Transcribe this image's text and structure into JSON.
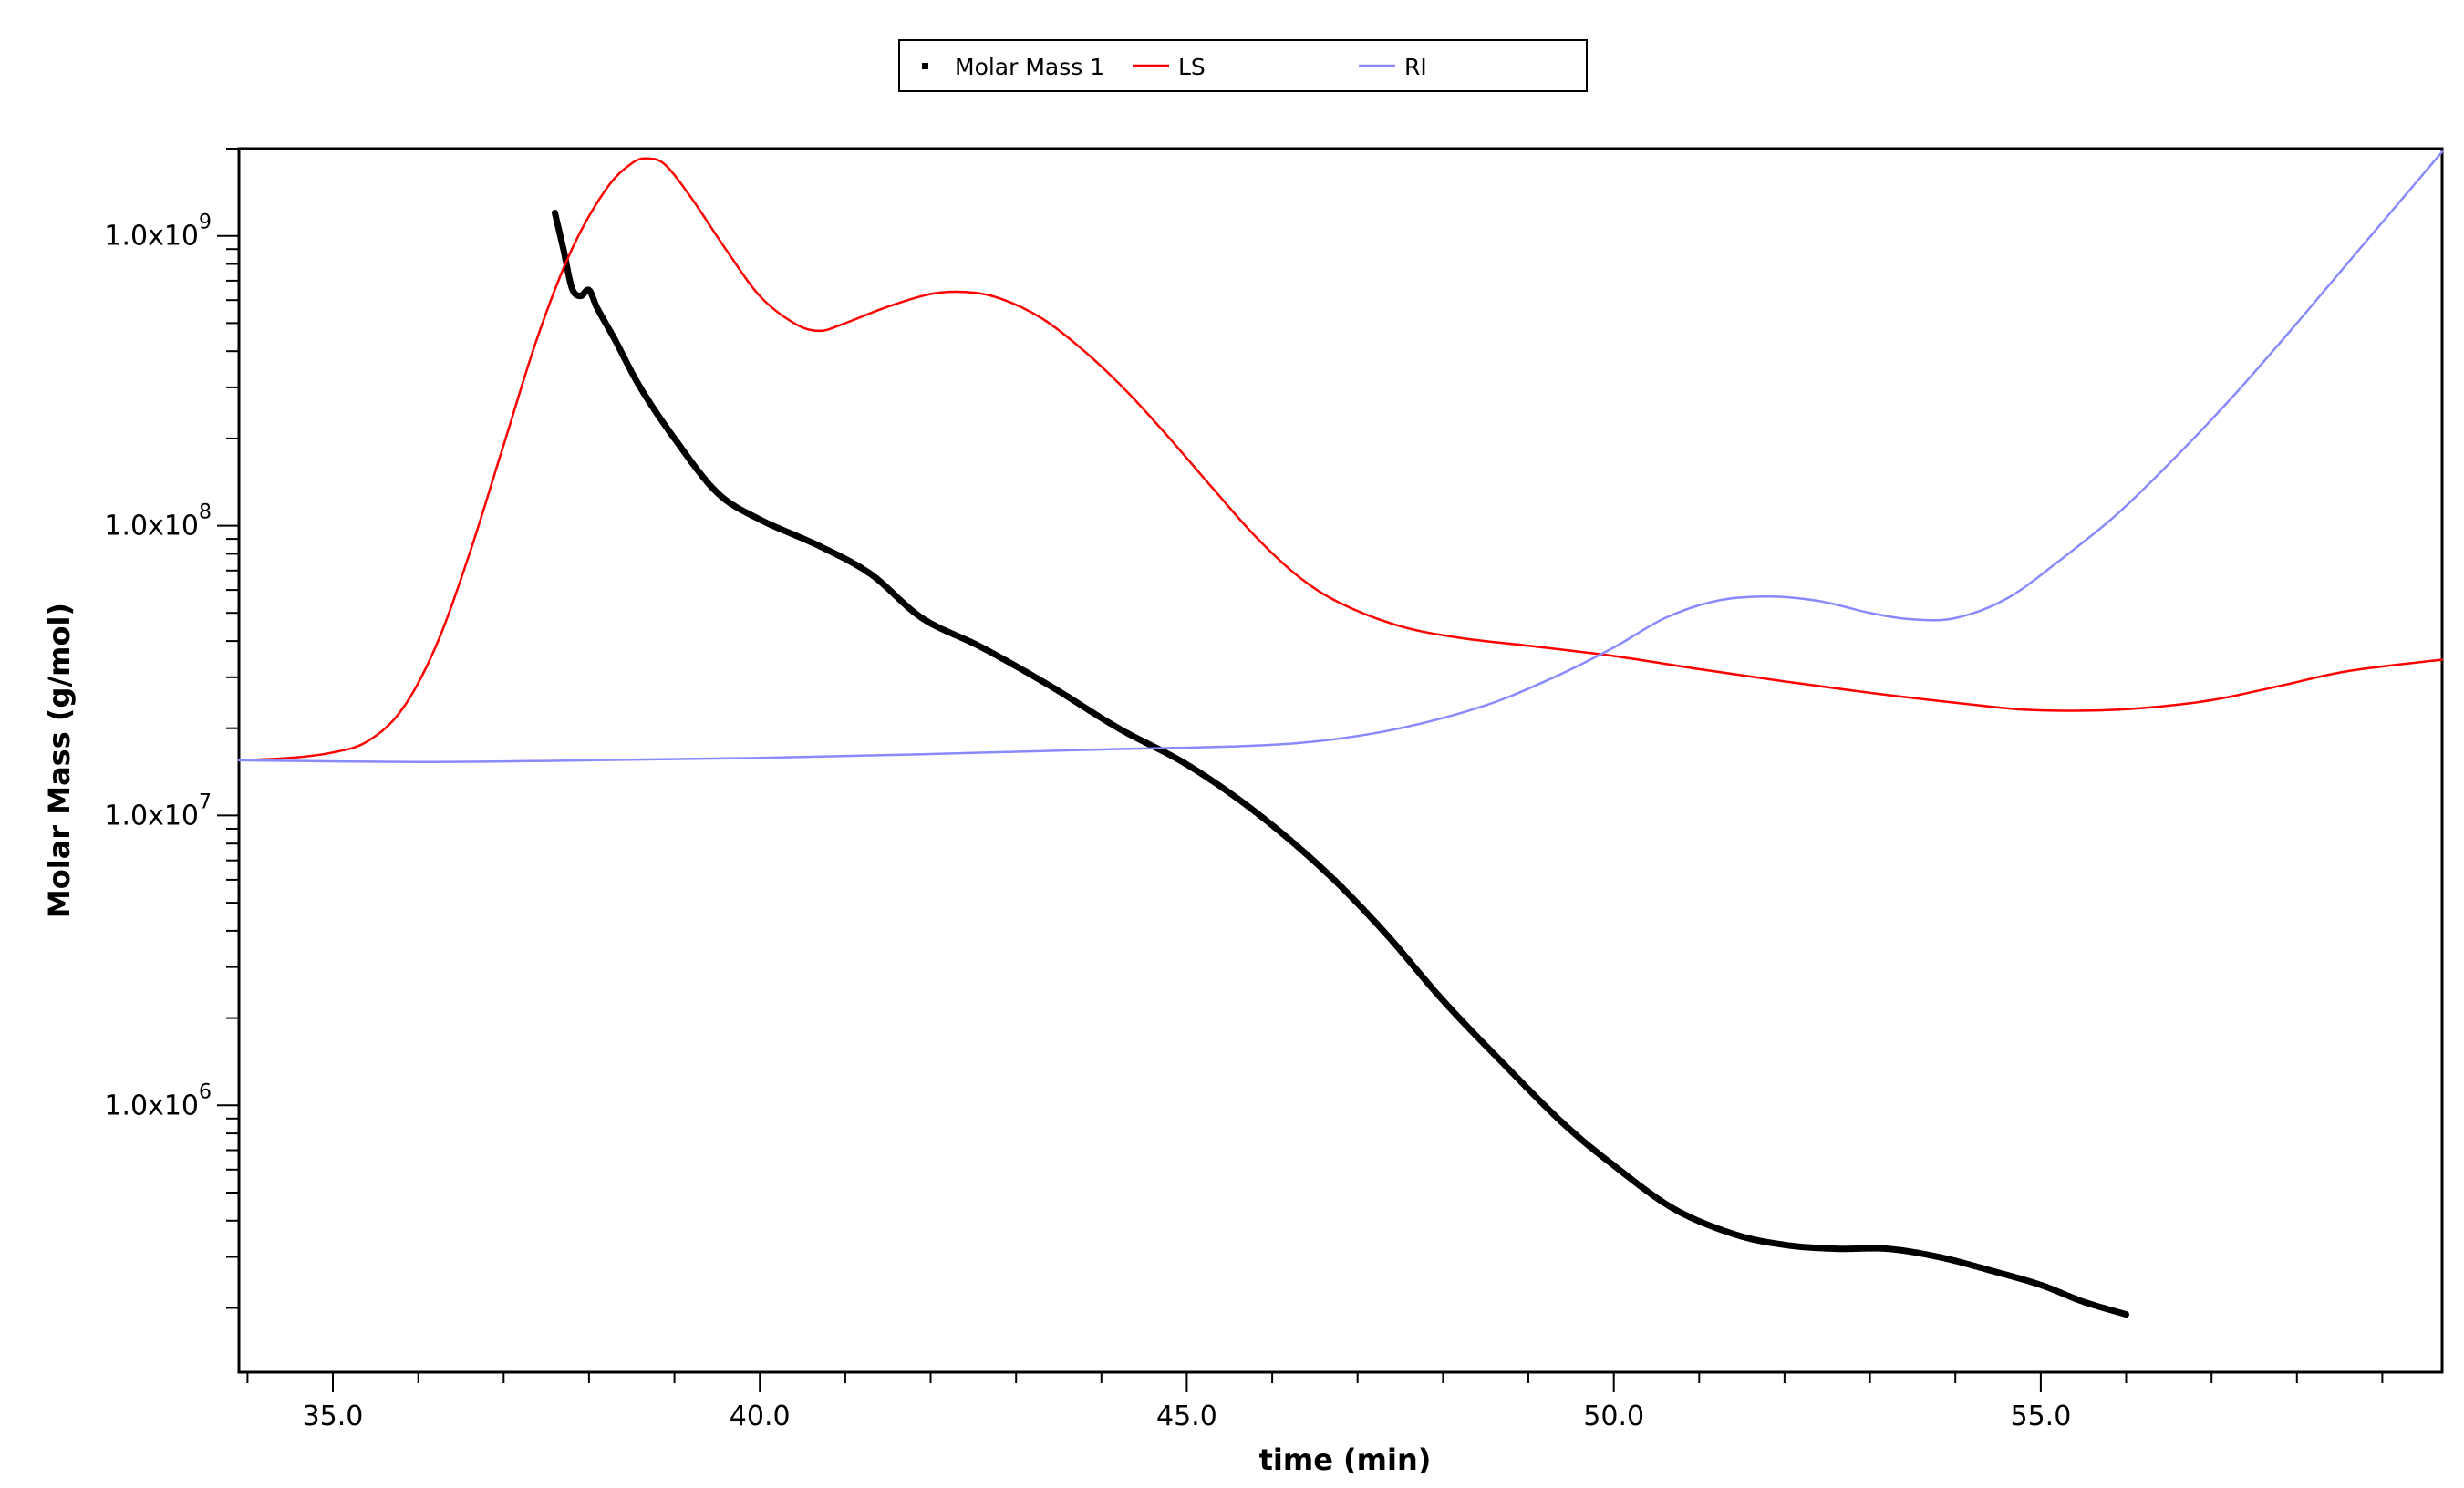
{
  "chart_data": {
    "type": "line",
    "xlabel": "time (min)",
    "ylabel": "Molar Mass (g/mol)",
    "y_scale": "log",
    "xlim": [
      33.9,
      59.7
    ],
    "ylim": [
      120000,
      2000000000
    ],
    "x_ticks": [
      35.0,
      40.0,
      45.0,
      50.0,
      55.0
    ],
    "x_tick_labels": [
      "35.0",
      "40.0",
      "45.0",
      "50.0",
      "55.0"
    ],
    "y_ticks": [
      1000000,
      10000000,
      100000000,
      1000000000
    ],
    "y_tick_labels": [
      {
        "mantissa": "1.0x10",
        "exponent": "6"
      },
      {
        "mantissa": "1.0x10",
        "exponent": "7"
      },
      {
        "mantissa": "1.0x10",
        "exponent": "8"
      },
      {
        "mantissa": "1.0x10",
        "exponent": "9"
      }
    ],
    "grid": false,
    "legend_position": "top-center",
    "legend": [
      "Molar Mass 1",
      "LS",
      "RI"
    ],
    "series": [
      {
        "name": "Molar Mass 1",
        "color": "#000000",
        "style": "markers",
        "x": [
          37.6,
          37.7,
          37.8,
          37.9,
          38.0,
          38.1,
          38.3,
          38.6,
          39.0,
          39.5,
          40.0,
          40.7,
          41.3,
          41.9,
          42.6,
          43.4,
          44.2,
          45.0,
          45.8,
          46.6,
          47.3,
          48.0,
          48.7,
          49.4,
          50.0,
          50.7,
          51.4,
          52.0,
          52.6,
          53.2,
          53.8,
          54.4,
          55.0,
          55.5,
          56.0
        ],
        "y": [
          1200000000,
          900000000,
          660000000,
          620000000,
          650000000,
          560000000,
          440000000,
          300000000,
          200000000,
          130000000,
          105000000,
          85000000,
          68000000,
          48000000,
          38000000,
          28000000,
          20000000,
          15000000,
          10300000,
          6500000,
          4000000,
          2300000,
          1400000,
          870000,
          620000,
          440000,
          360000,
          330000,
          320000,
          320000,
          300000,
          270000,
          240000,
          210000,
          190000
        ]
      },
      {
        "name": "LS",
        "color": "#ff0000",
        "style": "line",
        "x": [
          33.9,
          34.5,
          35.0,
          35.4,
          35.8,
          36.2,
          36.6,
          37.0,
          37.4,
          37.8,
          38.2,
          38.5,
          38.7,
          38.9,
          39.2,
          39.6,
          40.0,
          40.4,
          40.7,
          41.0,
          41.5,
          42.0,
          42.4,
          42.8,
          43.3,
          43.8,
          44.3,
          44.8,
          45.3,
          45.8,
          46.3,
          46.8,
          47.5,
          48.2,
          49.0,
          50.0,
          51.0,
          52.0,
          53.0,
          54.0,
          54.8,
          55.5,
          56.2,
          57.0,
          57.8,
          58.6,
          59.7
        ],
        "y": [
          15500000,
          15800000,
          16500000,
          18000000,
          23000000,
          38000000,
          80000000,
          190000000,
          450000000,
          900000000,
          1450000000,
          1780000000,
          1850000000,
          1750000000,
          1350000000,
          900000000,
          620000000,
          500000000,
          470000000,
          500000000,
          570000000,
          630000000,
          640000000,
          610000000,
          520000000,
          400000000,
          290000000,
          200000000,
          135000000,
          92000000,
          67000000,
          54000000,
          45000000,
          41000000,
          38500000,
          35500000,
          32000000,
          29000000,
          26500000,
          24500000,
          23200000,
          23000000,
          23500000,
          25000000,
          28000000,
          31500000,
          34500000
        ]
      },
      {
        "name": "RI",
        "color": "#8a8aff",
        "style": "line",
        "x": [
          33.9,
          36.0,
          38.0,
          40.0,
          42.0,
          44.0,
          45.5,
          46.5,
          47.5,
          48.5,
          49.3,
          50.0,
          50.6,
          51.2,
          51.8,
          52.4,
          53.0,
          53.5,
          54.0,
          54.6,
          55.2,
          55.9,
          56.6,
          57.3,
          58.0,
          58.8,
          59.7
        ],
        "y": [
          15500000,
          15300000,
          15500000,
          15800000,
          16300000,
          16900000,
          17300000,
          18000000,
          20000000,
          24000000,
          30000000,
          38000000,
          48000000,
          55000000,
          57000000,
          55000000,
          50000000,
          47500000,
          48000000,
          56000000,
          75000000,
          110000000,
          175000000,
          290000000,
          500000000,
          950000000,
          1950000000
        ]
      }
    ]
  }
}
